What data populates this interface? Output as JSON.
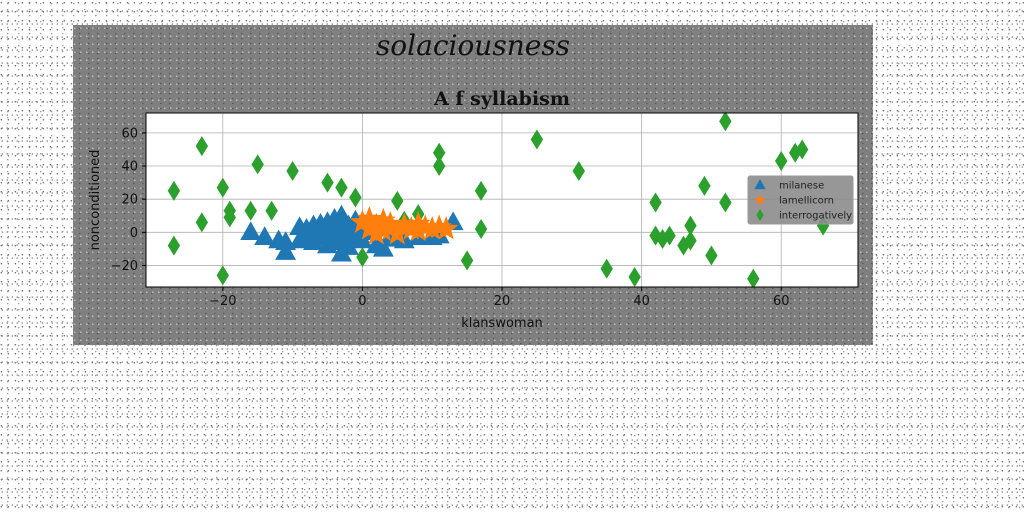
{
  "figure": {
    "suptitle": "solaciousness"
  },
  "chart_data": {
    "type": "scatter",
    "title": "A f syllabism",
    "xlabel": "klanswoman",
    "ylabel": "nonconditioned",
    "xlim": [
      -31,
      71
    ],
    "ylim": [
      -33,
      72
    ],
    "x_ticks": [
      -20,
      0,
      20,
      40,
      60
    ],
    "y_ticks": [
      -20,
      0,
      20,
      40,
      60
    ],
    "grid": true,
    "legend_position": "center-right",
    "series": [
      {
        "name": "milanese",
        "marker": "triangle",
        "color": "#1f77b4",
        "points": [
          [
            -16,
            0
          ],
          [
            -14,
            -3
          ],
          [
            -12,
            -5
          ],
          [
            -11,
            -6
          ],
          [
            -11,
            -12
          ],
          [
            -9,
            3
          ],
          [
            -9,
            -5
          ],
          [
            -8,
            2
          ],
          [
            -8,
            -4
          ],
          [
            -7,
            1
          ],
          [
            -7,
            4
          ],
          [
            -7,
            -6
          ],
          [
            -6,
            0
          ],
          [
            -6,
            5
          ],
          [
            -6,
            -3
          ],
          [
            -5,
            2
          ],
          [
            -5,
            6
          ],
          [
            -5,
            -2
          ],
          [
            -5,
            -8
          ],
          [
            -4,
            8
          ],
          [
            -4,
            3
          ],
          [
            -4,
            -1
          ],
          [
            -4,
            -4
          ],
          [
            -3,
            10
          ],
          [
            -3,
            5
          ],
          [
            -3,
            0
          ],
          [
            -3,
            -6
          ],
          [
            -3,
            -13
          ],
          [
            -2,
            4
          ],
          [
            -2,
            1
          ],
          [
            -2,
            -3
          ],
          [
            -2,
            -9
          ],
          [
            -1,
            7
          ],
          [
            -1,
            -2
          ],
          [
            0,
            2
          ],
          [
            0,
            -5
          ],
          [
            1,
            0
          ],
          [
            2,
            -8
          ],
          [
            3,
            -10
          ],
          [
            4,
            -4
          ],
          [
            5,
            -2
          ],
          [
            6,
            -5
          ],
          [
            8,
            -3
          ],
          [
            10,
            -3
          ],
          [
            11,
            -2
          ],
          [
            13,
            6
          ]
        ]
      },
      {
        "name": "lamellicorn",
        "marker": "star",
        "color": "#ff7f0e",
        "points": [
          [
            0,
            6
          ],
          [
            1,
            2
          ],
          [
            1,
            8
          ],
          [
            2,
            4
          ],
          [
            2,
            -1
          ],
          [
            3,
            7
          ],
          [
            3,
            1
          ],
          [
            4,
            5
          ],
          [
            4,
            2
          ],
          [
            5,
            -1
          ],
          [
            6,
            4
          ],
          [
            7,
            2
          ],
          [
            8,
            5
          ],
          [
            8,
            1
          ],
          [
            9,
            3
          ],
          [
            10,
            2
          ],
          [
            11,
            3
          ],
          [
            12,
            2
          ]
        ]
      },
      {
        "name": "interrogatively",
        "marker": "diamond",
        "color": "#2ca02c",
        "points": [
          [
            -27,
            25
          ],
          [
            -27,
            -8
          ],
          [
            -23,
            52
          ],
          [
            -23,
            6
          ],
          [
            -20,
            27
          ],
          [
            -20,
            -26
          ],
          [
            -19,
            13
          ],
          [
            -19,
            9
          ],
          [
            -16,
            13
          ],
          [
            -15,
            41
          ],
          [
            -13,
            13
          ],
          [
            -10,
            37
          ],
          [
            -5,
            30
          ],
          [
            -3,
            27
          ],
          [
            -2,
            -3
          ],
          [
            -1,
            21
          ],
          [
            0,
            -15
          ],
          [
            5,
            19
          ],
          [
            6,
            7
          ],
          [
            8,
            11
          ],
          [
            11,
            48
          ],
          [
            11,
            40
          ],
          [
            15,
            -17
          ],
          [
            17,
            25
          ],
          [
            17,
            2
          ],
          [
            25,
            56
          ],
          [
            31,
            37
          ],
          [
            35,
            -22
          ],
          [
            39,
            -27
          ],
          [
            42,
            18
          ],
          [
            42,
            -2
          ],
          [
            43,
            -4
          ],
          [
            44,
            -2
          ],
          [
            46,
            -8
          ],
          [
            47,
            -5
          ],
          [
            47,
            4
          ],
          [
            49,
            28
          ],
          [
            50,
            -14
          ],
          [
            52,
            67
          ],
          [
            52,
            18
          ],
          [
            56,
            -28
          ],
          [
            60,
            43
          ],
          [
            62,
            48
          ],
          [
            63,
            50
          ],
          [
            66,
            4
          ]
        ]
      }
    ]
  }
}
